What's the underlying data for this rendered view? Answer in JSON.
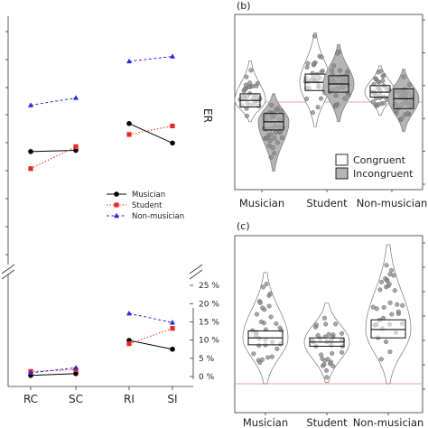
{
  "chart_data": [
    {
      "type": "line",
      "categories": [
        "RC",
        "SC",
        "RI",
        "SI"
      ],
      "ylabel": "ER",
      "yticks": [
        "0 %",
        "5 %",
        "10 %",
        "15 %",
        "20 %",
        "25 %"
      ],
      "ylim": [
        0,
        27
      ],
      "legend": "center-right",
      "series": [
        {
          "name": "Musician",
          "color": "#000000",
          "marker": "circle",
          "dash": "solid",
          "upper": [
            [
              78.9,
              79.0
            ],
            [
              81.2,
              79.6
            ]
          ],
          "er": [
            [
              0.3,
              0.8
            ],
            [
              9.9,
              7.5
            ]
          ]
        },
        {
          "name": "Student",
          "color": "#e8281e",
          "marker": "square",
          "dash": "dotted",
          "upper": [
            [
              77.5,
              79.3
            ],
            [
              80.3,
              81.0
            ]
          ],
          "er": [
            [
              1.4,
              1.9
            ],
            [
              9.0,
              13.2
            ]
          ]
        },
        {
          "name": "Non-musician",
          "color": "#2828d8",
          "marker": "triangle",
          "dash": "dashed",
          "upper": [
            [
              82.7,
              83.3
            ],
            [
              86.3,
              86.7
            ]
          ],
          "er": [
            [
              1.0,
              2.4
            ],
            [
              17.3,
              14.8
            ]
          ]
        }
      ]
    },
    {
      "type": "box",
      "panel_label": "(b)",
      "categories": [
        "Musician",
        "Student",
        "Non-musician"
      ],
      "legend": [
        "Congruent",
        "Incongruent"
      ],
      "legend_colors": [
        "#ffffff",
        "#b5b5b5"
      ],
      "reference_line": 50,
      "groups": [
        {
          "congruent": {
            "low": 47,
            "median": 51,
            "high": 55,
            "range": [
              38,
              75
            ]
          },
          "incongruent": {
            "low": 33,
            "median": 38,
            "high": 43,
            "range": [
              8,
              55
            ]
          }
        },
        {
          "congruent": {
            "low": 57,
            "median": 62,
            "high": 67,
            "range": [
              35,
              92
            ]
          },
          "incongruent": {
            "low": 56,
            "median": 61,
            "high": 66,
            "range": [
              38,
              85
            ]
          }
        },
        {
          "congruent": {
            "low": 53,
            "median": 56,
            "high": 60,
            "range": [
              42,
              72
            ]
          },
          "incongruent": {
            "low": 46,
            "median": 52,
            "high": 58,
            "range": [
              32,
              70
            ]
          }
        }
      ]
    },
    {
      "type": "box",
      "panel_label": "(c)",
      "categories": [
        "Musician",
        "Student",
        "Non-musician"
      ],
      "reference_line": 0,
      "groups": [
        {
          "low": 28,
          "median": 33,
          "high": 38,
          "range": [
            0,
            80
          ]
        },
        {
          "low": 27,
          "median": 30,
          "high": 33,
          "range": [
            1,
            58
          ]
        },
        {
          "low": 33,
          "median": 39,
          "high": 46,
          "range": [
            0,
            100
          ]
        }
      ]
    }
  ]
}
